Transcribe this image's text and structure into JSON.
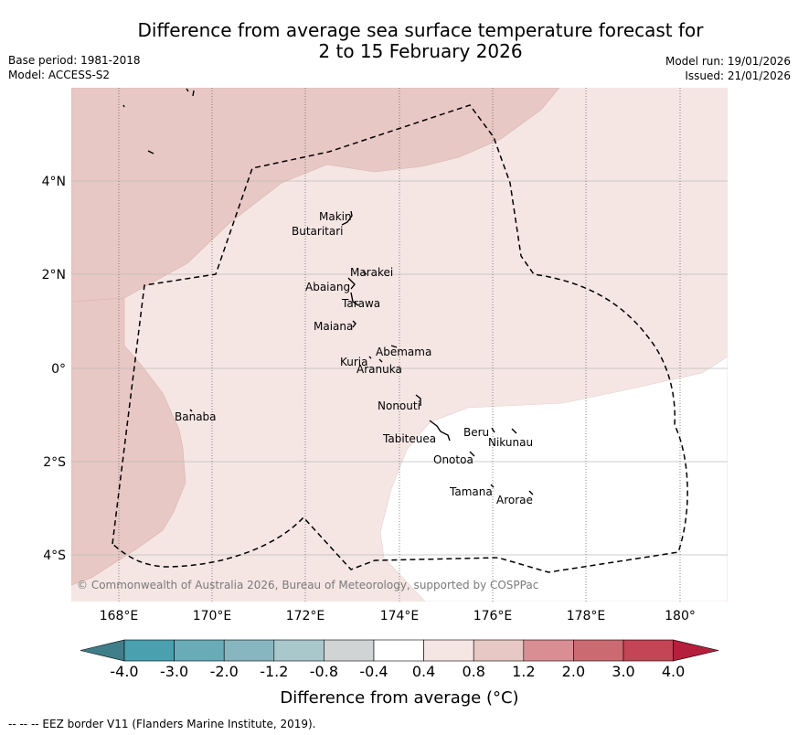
{
  "title": {
    "line1": "Difference from average sea surface temperature forecast for",
    "line2": "2 to 15 February 2026"
  },
  "meta": {
    "base_period": "Base period: 1981-2018",
    "model": "Model: ACCESS-S2",
    "model_run": "Model run: 19/01/2026",
    "issued": "Issued: 21/01/2026"
  },
  "map": {
    "copyright": "© Commonwealth of Australia 2026, Bureau of Meteorology, supported by COSPPac",
    "x_ticks": [
      "168°E",
      "170°E",
      "172°E",
      "174°E",
      "176°E",
      "178°E",
      "180°"
    ],
    "y_ticks": [
      "4°N",
      "2°N",
      "0°",
      "2°S",
      "4°S"
    ],
    "islands": [
      "Makin",
      "Butaritari",
      "Marakei",
      "Abaiang",
      "Tarawa",
      "Maiana",
      "Abemama",
      "Kuria",
      "Aranuka",
      "Nonouti",
      "Banaba",
      "Tabiteuea",
      "Beru",
      "Nikunau",
      "Onotoa",
      "Tamana",
      "Arorae"
    ],
    "colors": {
      "band_1_2": "#e8c8c4",
      "band_0_8": "#f5e6e4",
      "band_0_4": "#ffffff"
    }
  },
  "colorbar": {
    "ticks": [
      "-4.0",
      "-3.0",
      "-2.0",
      "-1.2",
      "-0.8",
      "-0.4",
      "0.4",
      "0.8",
      "1.2",
      "2.0",
      "3.0",
      "4.0"
    ],
    "colors": [
      "#3f7f8a",
      "#4aa0ae",
      "#6aabb8",
      "#88b6c0",
      "#a8c8cc",
      "#d0d4d4",
      "#ffffff",
      "#f5e6e4",
      "#e8c8c4",
      "#d98e93",
      "#cc6a72",
      "#c44555",
      "#b51f3b"
    ],
    "label": "Difference from average (°C)"
  },
  "footer": "--  --  -- EEZ border V11 (Flanders Marine Institute, 2019)."
}
